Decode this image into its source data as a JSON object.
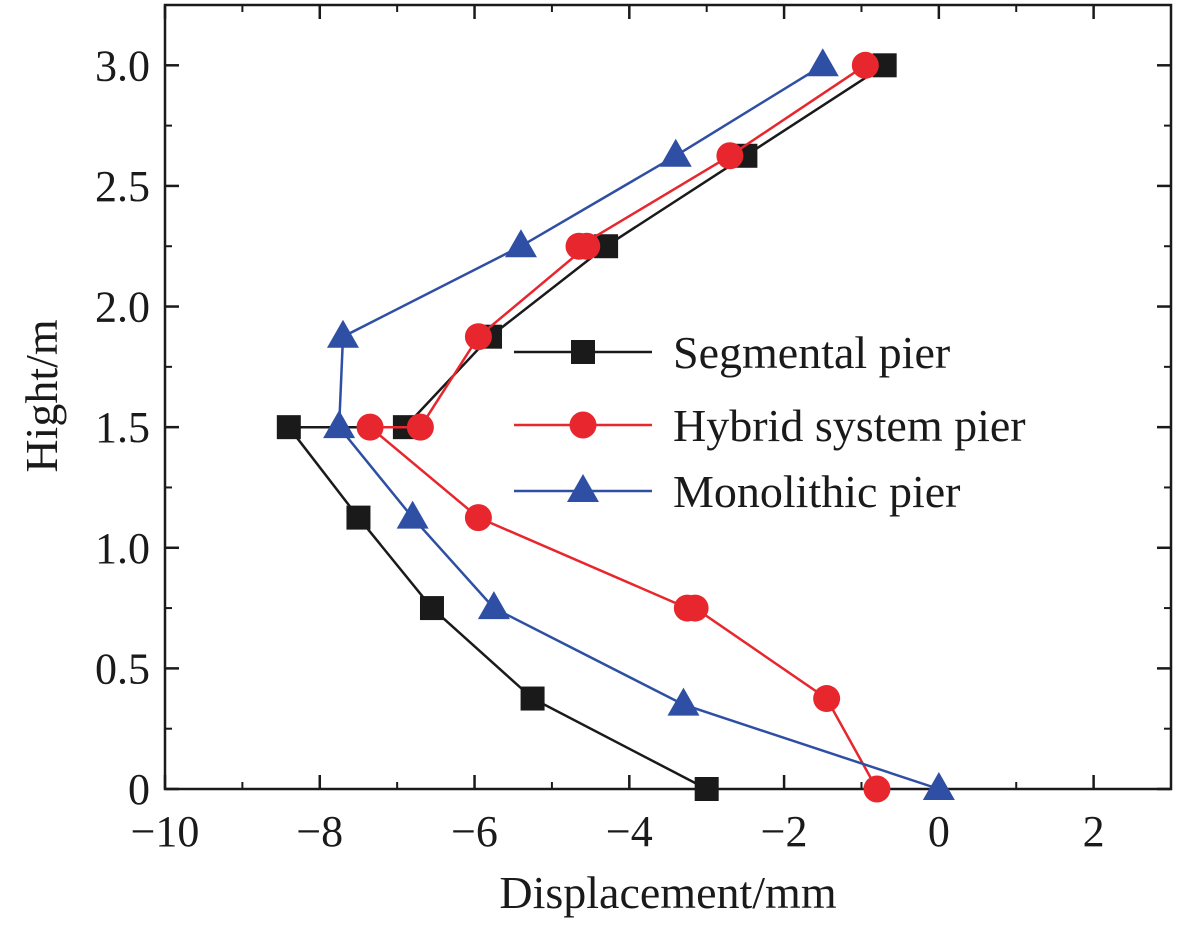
{
  "chart_data": {
    "type": "line",
    "xlabel": "Displacement/mm",
    "ylabel": "Hight/m",
    "xlim": [
      -10,
      3
    ],
    "ylim": [
      0,
      3.25
    ],
    "xticks": [
      -10,
      -8,
      -6,
      -4,
      -2,
      0,
      2
    ],
    "xtick_labels": [
      "−10",
      "−8",
      "−6",
      "−4",
      "−2",
      "0",
      "2"
    ],
    "yticks": [
      0,
      0.5,
      1.0,
      1.5,
      2.0,
      2.5,
      3.0
    ],
    "ytick_labels": [
      "0",
      "0.5",
      "1.0",
      "1.5",
      "2.0",
      "2.5",
      "3.0"
    ],
    "grid": false,
    "legend_position": "center-right",
    "series": [
      {
        "name": "Segmental pier",
        "color": "#1a1a1a",
        "marker": "square",
        "points": [
          [
            -3.0,
            0.0
          ],
          [
            -5.25,
            0.375
          ],
          [
            -6.55,
            0.75
          ],
          [
            -7.5,
            1.125
          ],
          [
            -8.4,
            1.5
          ],
          [
            -6.9,
            1.5
          ],
          [
            -5.8,
            1.875
          ],
          [
            -4.3,
            2.25
          ],
          [
            -2.5,
            2.625
          ],
          [
            -0.7,
            3.0
          ]
        ]
      },
      {
        "name": "Hybrid system pier",
        "color": "#e8262d",
        "marker": "circle",
        "points": [
          [
            -0.8,
            0.0
          ],
          [
            -1.45,
            0.375
          ],
          [
            -3.15,
            0.75
          ],
          [
            -3.25,
            0.75
          ],
          [
            -5.95,
            1.125
          ],
          [
            -7.35,
            1.5
          ],
          [
            -6.7,
            1.5
          ],
          [
            -5.95,
            1.875
          ],
          [
            -4.55,
            2.25
          ],
          [
            -4.65,
            2.25
          ],
          [
            -2.7,
            2.625
          ],
          [
            -0.95,
            3.0
          ]
        ]
      },
      {
        "name": "Monolithic pier",
        "color": "#2e4fa3",
        "marker": "triangle",
        "points": [
          [
            0.0,
            0.0
          ],
          [
            -3.3,
            0.35
          ],
          [
            -5.75,
            0.75
          ],
          [
            -6.8,
            1.125
          ],
          [
            -7.75,
            1.5
          ],
          [
            -7.7,
            1.875
          ],
          [
            -5.4,
            2.25
          ],
          [
            -3.4,
            2.625
          ],
          [
            -1.5,
            3.0
          ]
        ]
      }
    ]
  }
}
